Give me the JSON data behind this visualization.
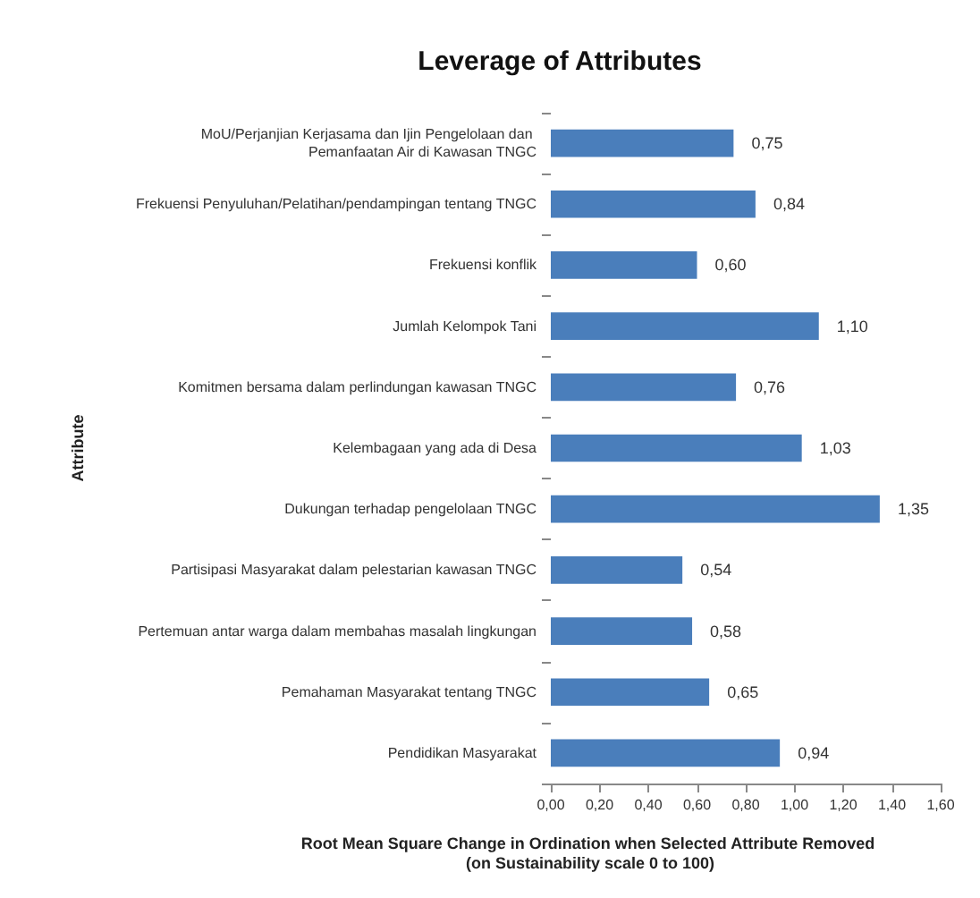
{
  "chart_data": {
    "type": "bar",
    "orientation": "horizontal",
    "title": "Leverage of Attributes",
    "xlabel": "Root Mean Square Change in Ordination when Selected Attribute Removed (on Sustainability scale 0 to 100)",
    "ylabel": "Attribute",
    "categories": [
      "MoU/Perjanjian Kerjasama dan Ijin Pengelolaan dan Pemanfaatan Air di Kawasan TNGC",
      "Frekuensi Penyuluhan/Pelatihan/pendampingan tentang TNGC",
      "Frekuensi konflik",
      "Jumlah Kelompok Tani",
      "Komitmen bersama dalam perlindungan kawasan TNGC",
      "Kelembagaan yang ada di Desa",
      "Dukungan terhadap pengelolaan TNGC",
      "Partisipasi Masyarakat dalam pelestarian kawasan TNGC",
      "Pertemuan antar warga dalam membahas masalah lingkungan",
      "Pemahaman Masyarakat tentang TNGC",
      "Pendidikan Masyarakat"
    ],
    "values": [
      0.75,
      0.84,
      0.6,
      1.1,
      0.76,
      1.03,
      1.35,
      0.54,
      0.58,
      0.65,
      0.94
    ],
    "value_labels": [
      "0,75",
      "0,84",
      "0,60",
      "1,10",
      "0,76",
      "1,03",
      "1,35",
      "0,54",
      "0,58",
      "0,65",
      "0,94"
    ],
    "color": "#4a7ebb",
    "xlim": [
      0,
      1.6
    ],
    "xticks": [
      {
        "value": 0,
        "label": "0,00"
      },
      {
        "value": 0.2,
        "label": "0,20"
      },
      {
        "value": 0.4,
        "label": "0,40"
      },
      {
        "value": 0.6,
        "label": "0,60"
      },
      {
        "value": 0.8,
        "label": "0,80"
      },
      {
        "value": 1,
        "label": "1,00"
      },
      {
        "value": 1.2,
        "label": "1,20"
      },
      {
        "value": 1.4,
        "label": "1,40"
      },
      {
        "value": 1.6,
        "label": "1,60"
      }
    ],
    "grid": false
  }
}
